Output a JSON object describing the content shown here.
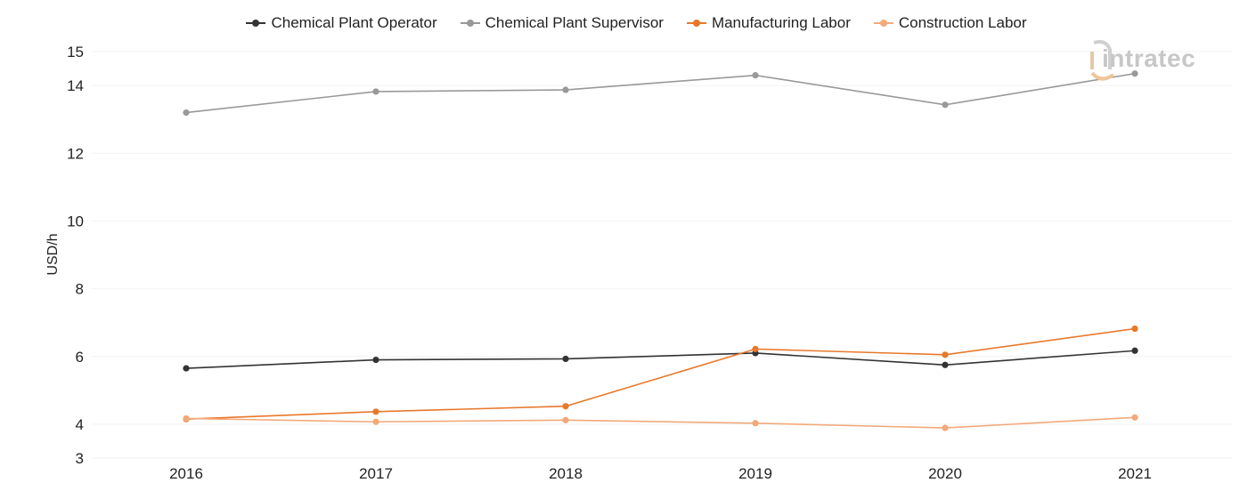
{
  "legend": [
    {
      "name": "Chemical Plant Operator",
      "color": "#333333"
    },
    {
      "name": "Chemical Plant Supervisor",
      "color": "#999999"
    },
    {
      "name": "Manufacturing Labor",
      "color": "#E8782A"
    },
    {
      "name": "Construction Labor",
      "color": "#F2A97A"
    }
  ],
  "logo": {
    "text": "intratec",
    "icon": "intratec-logo-icon"
  },
  "chart_data": {
    "type": "line",
    "x": [
      "2016",
      "2017",
      "2018",
      "2019",
      "2020",
      "2021"
    ],
    "series": [
      {
        "name": "Chemical Plant Operator",
        "color": "#333333",
        "values": [
          5.65,
          5.9,
          5.93,
          6.1,
          5.75,
          6.17
        ]
      },
      {
        "name": "Chemical Plant Supervisor",
        "color": "#999999",
        "values": [
          13.2,
          13.82,
          13.87,
          14.3,
          13.43,
          14.35
        ]
      },
      {
        "name": "Manufacturing Labor",
        "color": "#E8782A",
        "values": [
          4.15,
          4.37,
          4.53,
          6.22,
          6.05,
          6.82
        ]
      },
      {
        "name": "Construction Labor",
        "color": "#F2A97A",
        "values": [
          4.17,
          4.07,
          4.12,
          4.03,
          3.89,
          4.2
        ]
      }
    ],
    "ylabel": "USD/h",
    "xlabel": "",
    "yticks": [
      3,
      4,
      6,
      8,
      10,
      12,
      14,
      15
    ],
    "ylim": [
      3,
      15
    ],
    "grid": true,
    "legend_position": "top"
  }
}
